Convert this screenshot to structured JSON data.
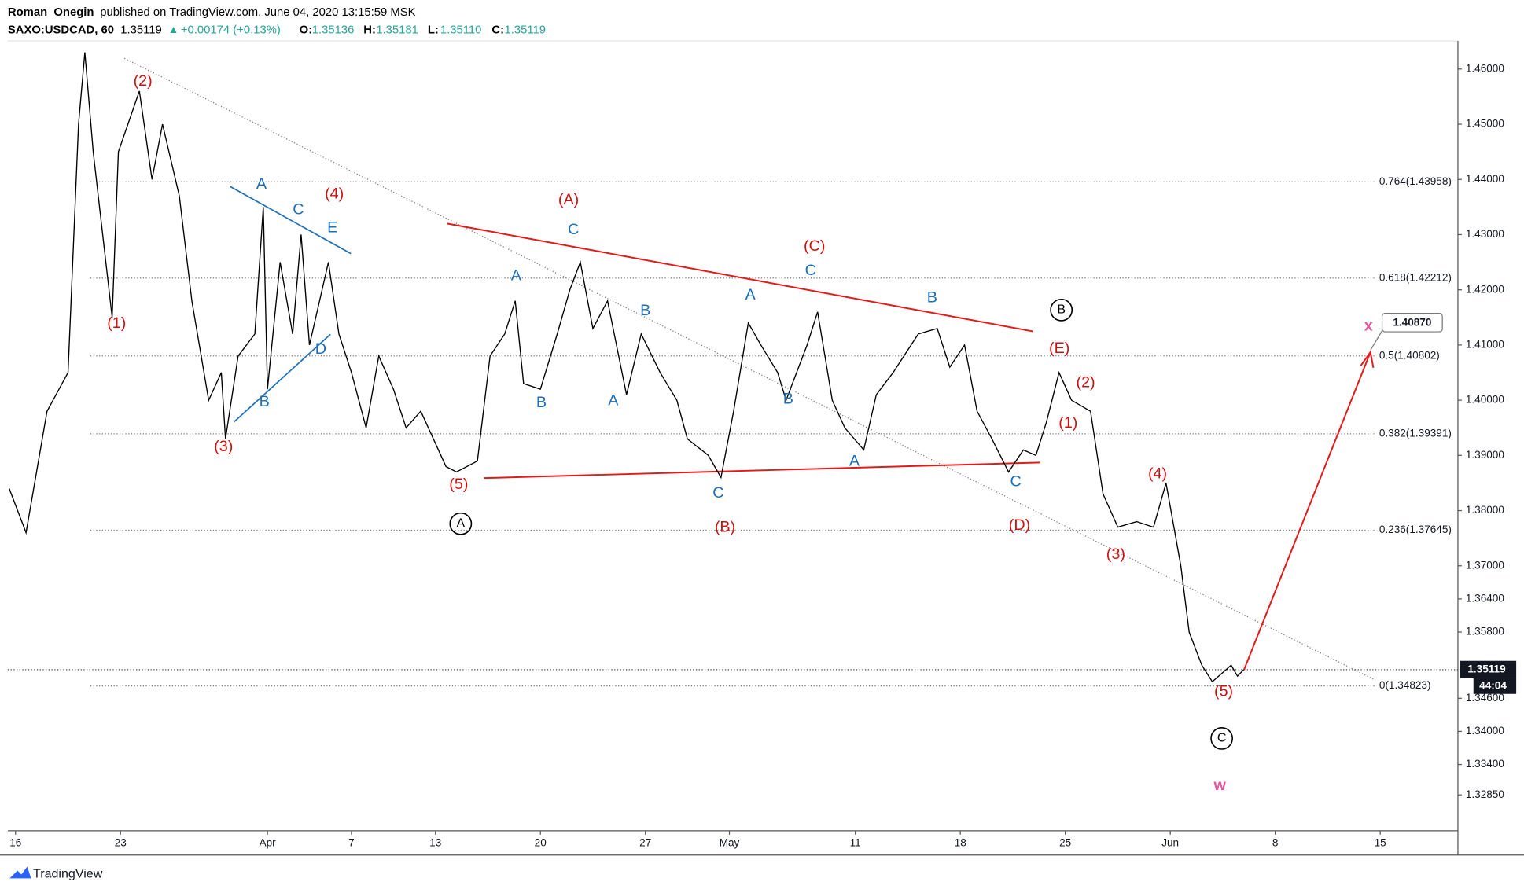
{
  "header": {
    "author": "Roman_Onegin",
    "published": "published on TradingView.com, June 04, 2020 13:15:59 MSK",
    "symbol": "SAXO:USDCAD, 60",
    "last": "1.35119",
    "arrow": "▲",
    "change": "+0.00174 (+0.13%)",
    "ohlc": [
      [
        "O:",
        "1.35136"
      ],
      [
        "H:",
        "1.35181"
      ],
      [
        "L:",
        "1.35110"
      ],
      [
        "C:",
        "1.35119"
      ]
    ]
  },
  "footer": {
    "brand": "TradingView"
  },
  "chart_data": {
    "type": "line",
    "color": "#000000",
    "x": [
      -0.3,
      0.5,
      1.5,
      2.5,
      3.0,
      3.3,
      3.7,
      4.6,
      4.9,
      5.9,
      6.5,
      7.0,
      7.8,
      8.4,
      9.2,
      9.8,
      10.0,
      10.6,
      11.4,
      11.8,
      12.0,
      12.6,
      13.2,
      13.6,
      14.0,
      14.9,
      15.4,
      16.0,
      16.7,
      17.3,
      18.0,
      18.6,
      19.3,
      20.5,
      21.0,
      22.0,
      22.6,
      23.3,
      23.8,
      24.2,
      25.0,
      25.8,
      26.4,
      26.9,
      27.5,
      28.2,
      29.1,
      29.8,
      30.7,
      31.5,
      32.0,
      33.0,
      33.6,
      34.2,
      34.9,
      35.5,
      36.3,
      36.7,
      37.7,
      38.2,
      38.9,
      39.5,
      40.4,
      41.0,
      41.8,
      43.0,
      43.9,
      44.5,
      45.2,
      45.8,
      46.5,
      47.3,
      48.0,
      48.6,
      49.1,
      49.7,
      50.3,
      51.2,
      51.8,
      52.5,
      53.4,
      54.2,
      54.8,
      55.5,
      55.9,
      56.5,
      57.0,
      57.9,
      58.2,
      58.5
    ],
    "values": [
      1.384,
      1.376,
      1.398,
      1.405,
      1.45,
      1.463,
      1.445,
      1.415,
      1.445,
      1.456,
      1.44,
      1.45,
      1.437,
      1.418,
      1.4,
      1.405,
      1.393,
      1.408,
      1.412,
      1.435,
      1.402,
      1.425,
      1.412,
      1.43,
      1.41,
      1.425,
      1.412,
      1.405,
      1.395,
      1.408,
      1.402,
      1.395,
      1.398,
      1.388,
      1.387,
      1.389,
      1.408,
      1.412,
      1.418,
      1.403,
      1.402,
      1.412,
      1.42,
      1.425,
      1.413,
      1.418,
      1.401,
      1.412,
      1.405,
      1.4,
      1.393,
      1.39,
      1.386,
      1.398,
      1.414,
      1.41,
      1.405,
      1.4,
      1.41,
      1.416,
      1.4,
      1.395,
      1.391,
      1.401,
      1.405,
      1.412,
      1.413,
      1.406,
      1.41,
      1.398,
      1.393,
      1.387,
      1.391,
      1.39,
      1.396,
      1.405,
      1.4,
      1.398,
      1.383,
      1.377,
      1.378,
      1.377,
      1.385,
      1.37,
      1.358,
      1.352,
      1.349,
      1.352,
      1.35,
      1.3512
    ],
    "xlim": [
      -0.37,
      68.7
    ],
    "xticks": [
      {
        "value": 0,
        "label": "16"
      },
      {
        "value": 5,
        "label": "23"
      },
      {
        "value": 12,
        "label": "Apr"
      },
      {
        "value": 16,
        "label": "7"
      },
      {
        "value": 20,
        "label": "13"
      },
      {
        "value": 25,
        "label": "20"
      },
      {
        "value": 30,
        "label": "27"
      },
      {
        "value": 34,
        "label": "May"
      },
      {
        "value": 40,
        "label": "11"
      },
      {
        "value": 45,
        "label": "18"
      },
      {
        "value": 50,
        "label": "25"
      },
      {
        "value": 55,
        "label": "Jun"
      },
      {
        "value": 60,
        "label": "8"
      },
      {
        "value": 65,
        "label": "15"
      }
    ],
    "ylim": [
      1.322,
      1.4651
    ],
    "yticks": [
      {
        "value": 1.46,
        "label": "1.46000"
      },
      {
        "value": 1.45,
        "label": "1.45000"
      },
      {
        "value": 1.44,
        "label": "1.44000"
      },
      {
        "value": 1.43,
        "label": "1.43000"
      },
      {
        "value": 1.42,
        "label": "1.42000"
      },
      {
        "value": 1.41,
        "label": "1.41000"
      },
      {
        "value": 1.4,
        "label": "1.40000"
      },
      {
        "value": 1.39,
        "label": "1.39000"
      },
      {
        "value": 1.38,
        "label": "1.38000"
      },
      {
        "value": 1.37,
        "label": "1.37000"
      },
      {
        "value": 1.364,
        "label": "1.36400"
      },
      {
        "value": 1.358,
        "label": "1.35800"
      },
      {
        "value": 1.346,
        "label": "1.34600"
      },
      {
        "value": 1.34,
        "label": "1.34000"
      },
      {
        "value": 1.334,
        "label": "1.33400"
      },
      {
        "value": 1.3285,
        "label": "1.32850"
      }
    ],
    "fib": [
      {
        "value": 1.43958,
        "label": "0.764(1.43958)"
      },
      {
        "value": 1.42212,
        "label": "0.618(1.42212)"
      },
      {
        "value": 1.40802,
        "label": "0.5(1.40802)"
      },
      {
        "value": 1.39391,
        "label": "0.382(1.39391)"
      },
      {
        "value": 1.37645,
        "label": "0.236(1.37645)"
      },
      {
        "value": 1.34823,
        "label": "0(1.34823)"
      }
    ],
    "current_price": 1.35119,
    "countdown": "44:04",
    "target": {
      "value": 1.4087,
      "label": "1.40870"
    },
    "annotations": [
      {
        "text": "(2)",
        "color": "#d01010"
      },
      {
        "text": "(1)",
        "color": "#d01010"
      },
      {
        "text": "(3)",
        "color": "#d01010"
      },
      {
        "text": "(4)",
        "color": "#d01010"
      },
      {
        "text": "A",
        "color": "#1e6fb8"
      },
      {
        "text": "C",
        "color": "#1e6fb8"
      },
      {
        "text": "E",
        "color": "#1e6fb8"
      },
      {
        "text": "B",
        "color": "#1e6fb8"
      },
      {
        "text": "D",
        "color": "#1e6fb8"
      },
      {
        "text": "(5)",
        "color": "#d01010"
      },
      {
        "text": "A",
        "color": "#000000",
        "circled": true
      },
      {
        "text": "(A)",
        "color": "#d01010"
      },
      {
        "text": "C",
        "color": "#1e6fb8"
      },
      {
        "text": "A",
        "color": "#1e6fb8"
      },
      {
        "text": "B",
        "color": "#1e6fb8"
      },
      {
        "text": "B",
        "color": "#1e6fb8"
      },
      {
        "text": "A",
        "color": "#1e6fb8"
      },
      {
        "text": "C",
        "color": "#1e6fb8"
      },
      {
        "text": "(B)",
        "color": "#d01010"
      },
      {
        "text": "A",
        "color": "#1e6fb8"
      },
      {
        "text": "(C)",
        "color": "#d01010"
      },
      {
        "text": "C",
        "color": "#1e6fb8"
      },
      {
        "text": "B",
        "color": "#1e6fb8"
      },
      {
        "text": "A",
        "color": "#1e6fb8"
      },
      {
        "text": "B",
        "color": "#1e6fb8"
      },
      {
        "text": "B",
        "color": "#000000",
        "circled": true
      },
      {
        "text": "(E)",
        "color": "#d01010"
      },
      {
        "text": "C",
        "color": "#1e6fb8"
      },
      {
        "text": "(D)",
        "color": "#d01010"
      },
      {
        "text": "(2)",
        "color": "#d01010"
      },
      {
        "text": "(1)",
        "color": "#d01010"
      },
      {
        "text": "(3)",
        "color": "#d01010"
      },
      {
        "text": "(4)",
        "color": "#d01010"
      },
      {
        "text": "(5)",
        "color": "#d01010"
      },
      {
        "text": "C",
        "color": "#000000",
        "circled": true
      },
      {
        "text": "w",
        "color": "#e8559c"
      },
      {
        "text": "x",
        "color": "#e8559c"
      }
    ]
  }
}
